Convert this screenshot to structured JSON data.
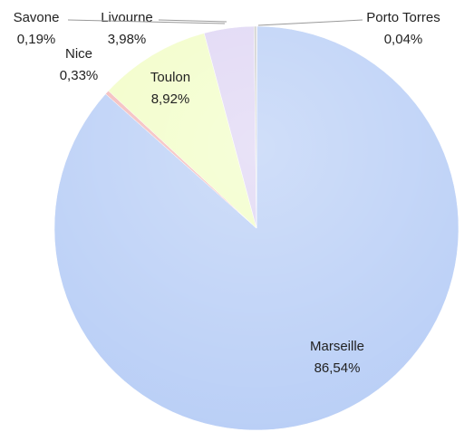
{
  "chart_data": {
    "type": "pie",
    "categories": [
      "Porto Torres",
      "Marseille",
      "Nice",
      "Toulon",
      "Livourne",
      "Savone"
    ],
    "values": [
      0.04,
      86.54,
      0.33,
      8.92,
      3.98,
      0.19
    ],
    "value_labels": [
      "0,04%",
      "86,54%",
      "0,33%",
      "8,92%",
      "3,98%",
      "0,19%"
    ],
    "colors": [
      "#e9b48a",
      "#b7cdf6",
      "#f3b7b7",
      "#f1fdc4",
      "#ddd3f3",
      "#c9c9c9"
    ]
  }
}
